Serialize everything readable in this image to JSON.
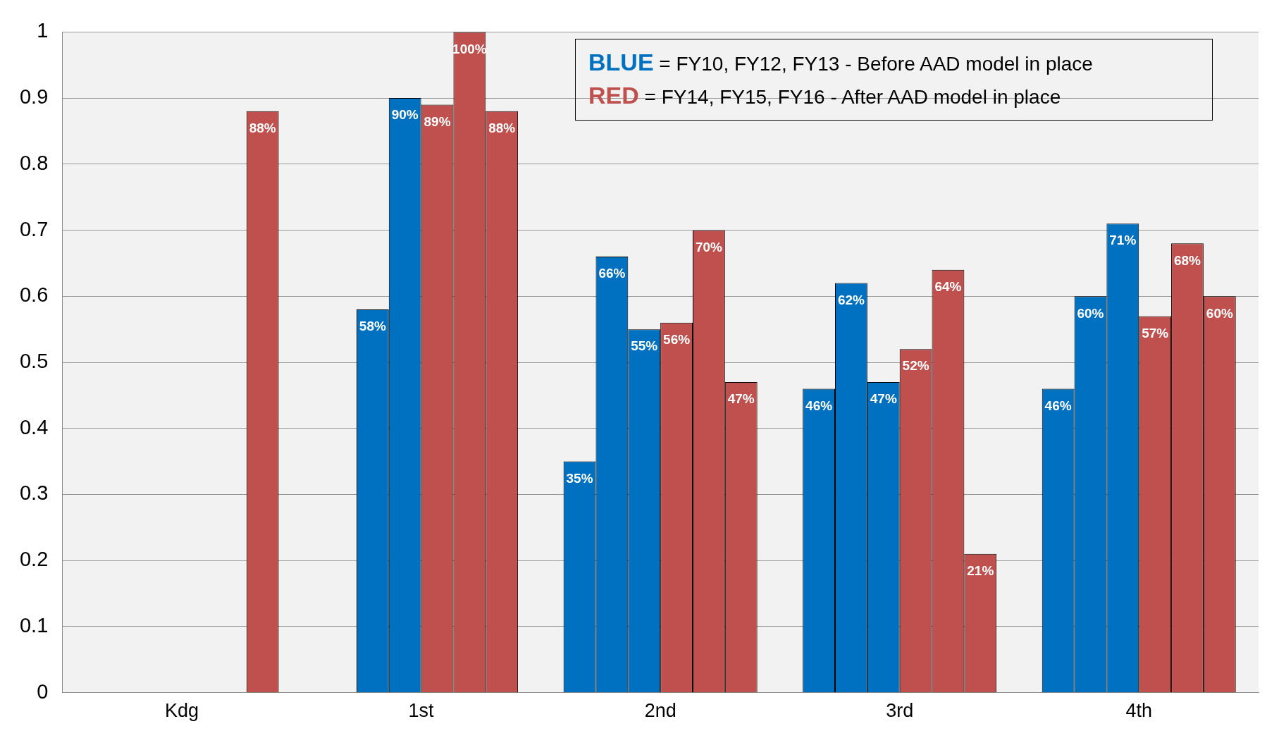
{
  "chart_data": {
    "type": "bar",
    "categories": [
      "Kdg",
      "1st",
      "2nd",
      "3rd",
      "4th"
    ],
    "series": [
      {
        "color": "#0070c0",
        "values": [
          null,
          null,
          0.35,
          0.46,
          0.46
        ],
        "value_labels": [
          null,
          null,
          "35%",
          "46%",
          "46%"
        ]
      },
      {
        "color": "#0070c0",
        "values": [
          null,
          0.58,
          0.66,
          0.62,
          0.6
        ],
        "value_labels": [
          null,
          "58%",
          "66%",
          "62%",
          "60%"
        ]
      },
      {
        "color": "#0070c0",
        "values": [
          null,
          0.9,
          0.55,
          0.47,
          0.71
        ],
        "value_labels": [
          null,
          "90%",
          "55%",
          "47%",
          "71%"
        ]
      },
      {
        "color": "#c0504d",
        "values": [
          null,
          0.89,
          0.56,
          0.52,
          0.57
        ],
        "value_labels": [
          null,
          "89%",
          "56%",
          "52%",
          "57%"
        ]
      },
      {
        "color": "#c0504d",
        "values": [
          null,
          1,
          0.7,
          0.64,
          0.68
        ],
        "value_labels": [
          null,
          "100%",
          "70%",
          "64%",
          "68%"
        ]
      },
      {
        "color": "#c0504d",
        "values": [
          0.88,
          0.88,
          0.47,
          0.21,
          0.6
        ],
        "value_labels": [
          "88%",
          "88%",
          "47%",
          "21%",
          "60%"
        ]
      }
    ],
    "ylim": [
      0,
      1
    ],
    "yticks": [
      0,
      0.1,
      0.2,
      0.3,
      0.4,
      0.5,
      0.6,
      0.7,
      0.8,
      0.9,
      1
    ],
    "grid": "y",
    "legend": false,
    "annotations": [
      "BLUE = FY10, FY12, FY13 - Before AAD model  in place",
      "RED = FY14, FY15, FY16 - After AAD model  in place"
    ]
  }
}
